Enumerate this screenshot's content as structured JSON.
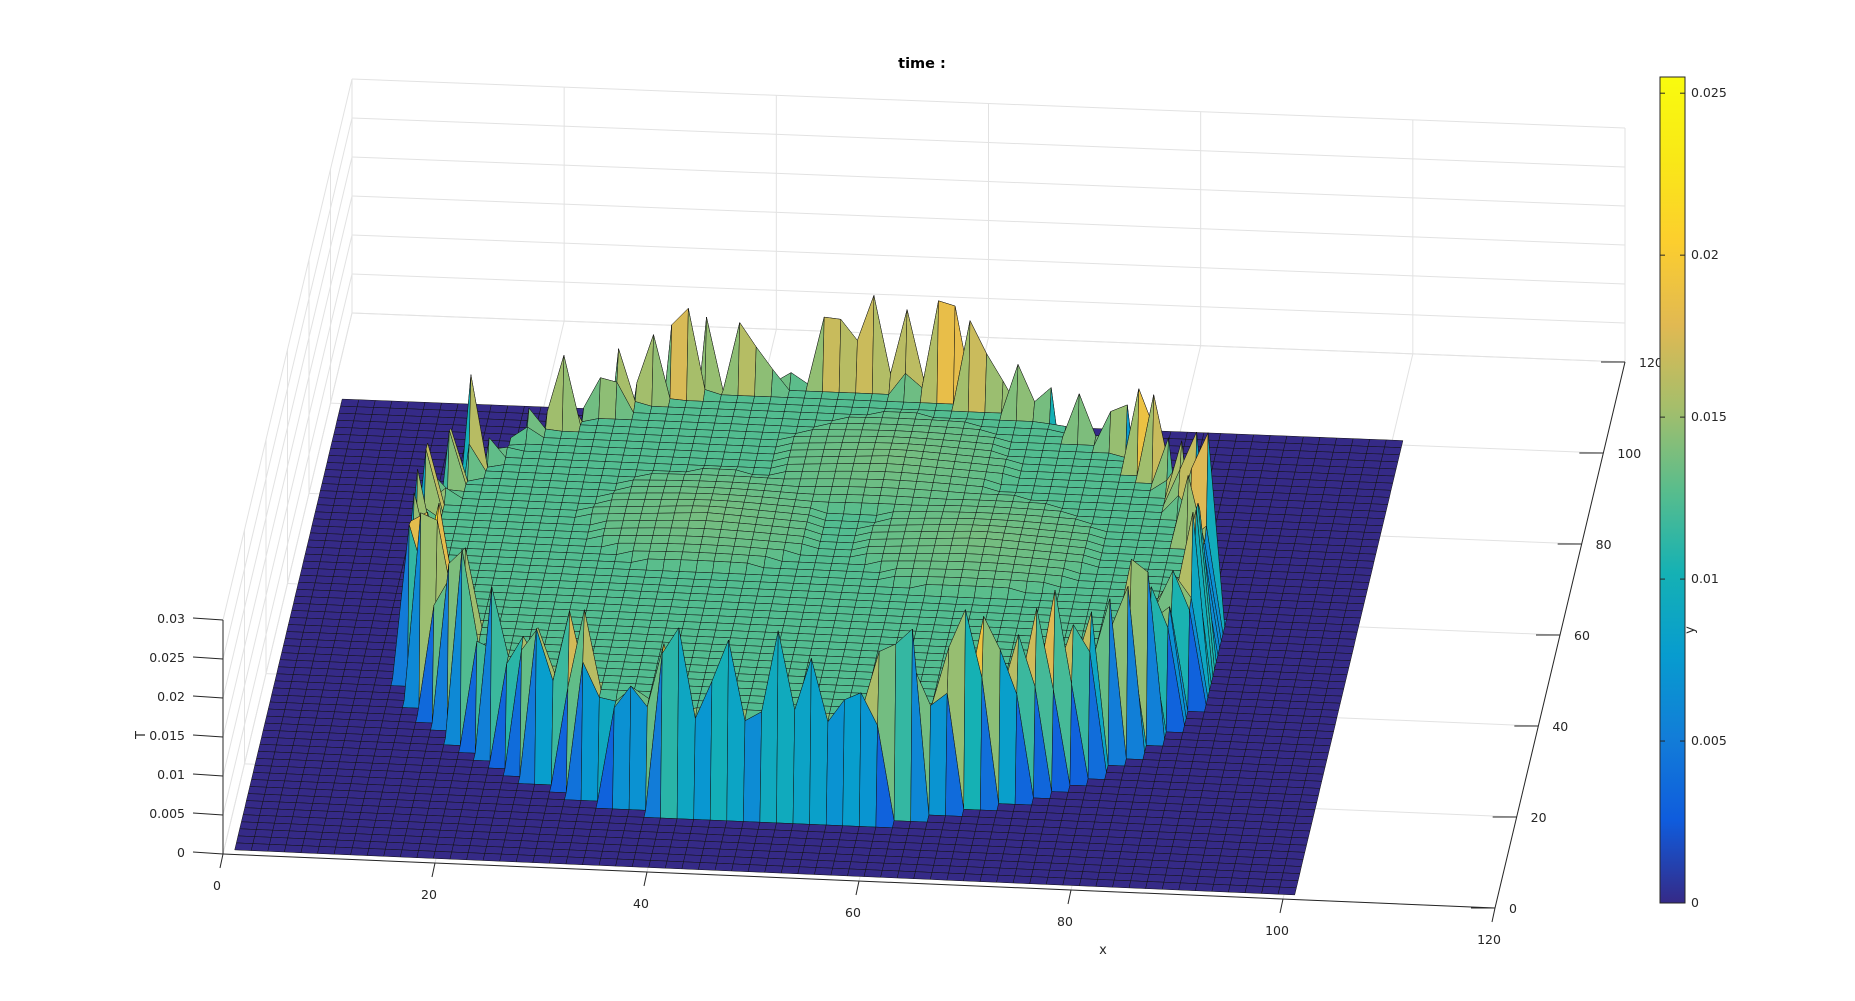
{
  "chart_data": {
    "type": "surface",
    "title": "time :",
    "xlabel": "x",
    "ylabel": "y",
    "zlabel": "T",
    "xlim": [
      0,
      120
    ],
    "ylim": [
      0,
      120
    ],
    "zlim": [
      0,
      0.03
    ],
    "x_ticks": [
      "0",
      "20",
      "40",
      "60",
      "80",
      "100",
      "120"
    ],
    "y_ticks": [
      "0",
      "20",
      "40",
      "60",
      "80",
      "100",
      "120"
    ],
    "z_ticks": [
      "0",
      "0.005",
      "0.01",
      "0.015",
      "0.02",
      "0.025",
      "0.03"
    ],
    "x_tick_values": [
      0,
      20,
      40,
      60,
      80,
      100,
      120
    ],
    "y_tick_values": [
      0,
      20,
      40,
      60,
      80,
      100,
      120
    ],
    "z_tick_values": [
      0,
      0.005,
      0.01,
      0.015,
      0.02,
      0.025,
      0.03
    ],
    "grid": true,
    "surface": {
      "x_range": [
        1,
        101
      ],
      "y_range": [
        1,
        101
      ],
      "background_value": 0,
      "disk_center": [
        50,
        50
      ],
      "disk_radius": 38,
      "disk_plateau_value": 0.0125,
      "rim_spike_value_range": [
        0.012,
        0.025
      ],
      "inner_lobe_value": 0.013
    },
    "colorbar": {
      "colormap": "parula",
      "limits": [
        0,
        0.0255
      ],
      "ticks": [
        "0",
        "0.005",
        "0.01",
        "0.015",
        "0.02",
        "0.025"
      ],
      "tick_values": [
        0,
        0.005,
        0.01,
        0.015,
        0.02,
        0.025
      ]
    }
  }
}
